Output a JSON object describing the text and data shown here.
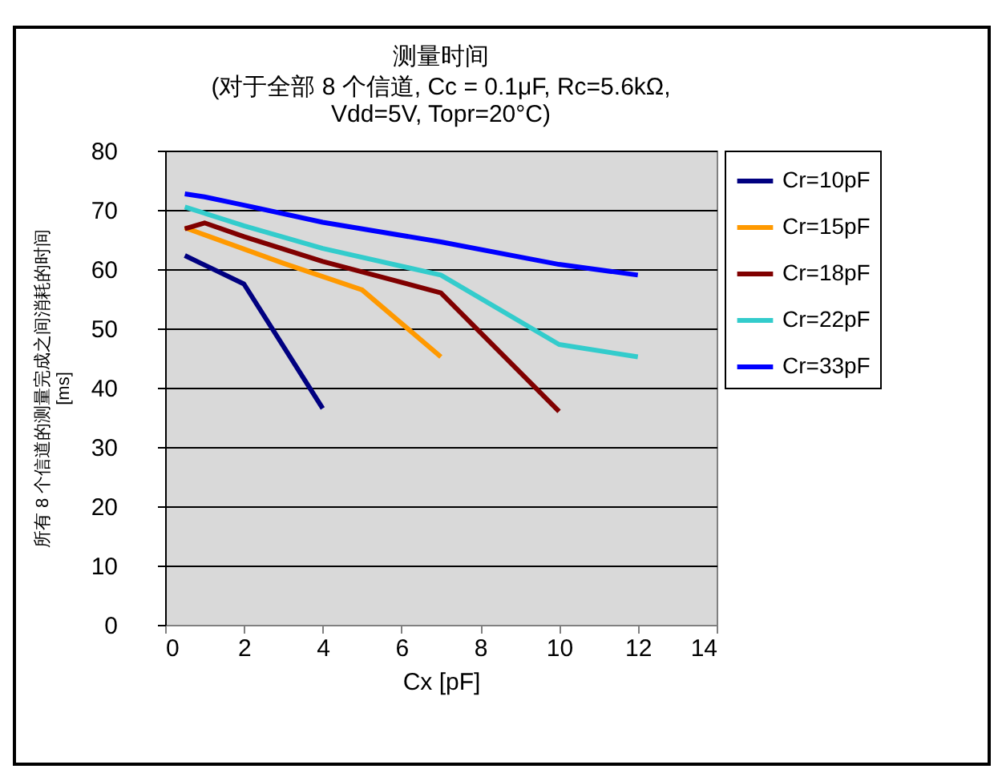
{
  "chart_data": {
    "type": "line",
    "title": "测量时间",
    "subtitle": [
      "(对于全部 8 个信道, Cc = 0.1μF, Rc=5.6kΩ,",
      "Vdd=5V, Topr=20°C)"
    ],
    "xlabel": "Cx [pF]",
    "ylabel": [
      "所有 8 个信道的测量完成之间消耗的时间",
      "[ms]"
    ],
    "xlim": [
      0,
      14
    ],
    "xticks": [
      0,
      2,
      4,
      6,
      8,
      10,
      12,
      14
    ],
    "ylim": [
      0,
      80
    ],
    "yticks": [
      0,
      10,
      20,
      30,
      40,
      50,
      60,
      70,
      80
    ],
    "grid": "y",
    "legend": "right",
    "series": [
      {
        "name": "Cr=10pF",
        "color": "#000080",
        "x": [
          0.5,
          2,
          4
        ],
        "values": [
          62.3,
          57.5,
          36.5
        ]
      },
      {
        "name": "Cr=15pF",
        "color": "#ff9900",
        "x": [
          0.5,
          1,
          3,
          5,
          7
        ],
        "values": [
          67,
          65.8,
          61,
          56.5,
          45.2
        ]
      },
      {
        "name": "Cr=18pF",
        "color": "#800000",
        "x": [
          0.5,
          1,
          2,
          4,
          7,
          10
        ],
        "values": [
          66.8,
          67.8,
          65.5,
          61.3,
          56,
          36
        ]
      },
      {
        "name": "Cr=22pF",
        "color": "#33cccc",
        "x": [
          0.5,
          2,
          4,
          7,
          10,
          12
        ],
        "values": [
          70.5,
          67.3,
          63.5,
          59,
          47.3,
          45.2
        ]
      },
      {
        "name": "Cr=33pF",
        "color": "#0000ff",
        "x": [
          0.5,
          1,
          2,
          4,
          7,
          10,
          12
        ],
        "values": [
          72.7,
          72.2,
          70.8,
          67.9,
          64.6,
          60.8,
          59
        ]
      }
    ]
  }
}
